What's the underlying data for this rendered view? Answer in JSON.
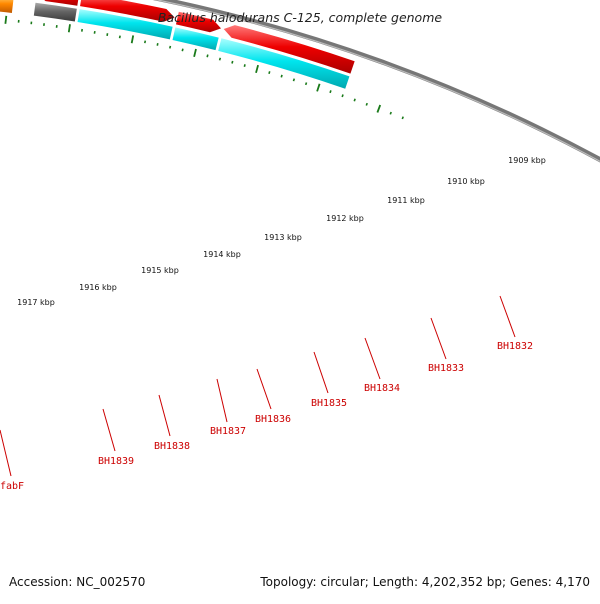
{
  "title": "Bacillus halodurans C-125, complete genome",
  "accession_label": "Accession: NC_002570",
  "genome_info": "Topology: circular; Length: 4,202,352 bp; Genes: 4,170",
  "kbp_labels": [
    "1909 kbp",
    "1910 kbp",
    "1911 kbp",
    "1912 kbp",
    "1913 kbp",
    "1914 kbp",
    "1915 kbp",
    "1916 kbp",
    "1917 kbp"
  ],
  "gene_labels": [
    "BH1832",
    "BH1833",
    "BH1834",
    "BH1835",
    "BH1836",
    "BH1837",
    "BH1838",
    "BH1839",
    "fabF"
  ],
  "colors": {
    "gene_red": "#ee0000",
    "gene_cyan": "#00e5ee",
    "gene_orange": "#ff8800",
    "gene_navy": "#00007a",
    "gene_gray": "#b5b5b5",
    "gene_darkgray": "#666666",
    "gene_purple": "#5a4fc0",
    "label_red": "#cc0000",
    "tick_green": "#1a7a1a",
    "backbone": "#777777"
  }
}
